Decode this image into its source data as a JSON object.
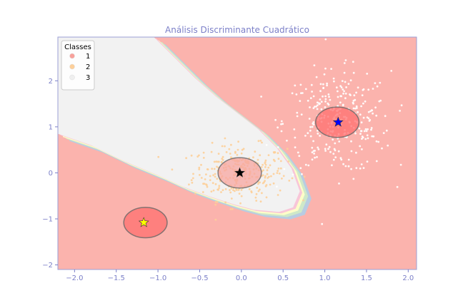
{
  "chart_data": {
    "type": "scatter",
    "title": "Análisis Discriminante Cuadrático",
    "xlabel": "",
    "ylabel": "",
    "xlim": [
      -2.2,
      2.1
    ],
    "ylim": [
      -2.1,
      2.95
    ],
    "xticks": [
      -2.0,
      -1.5,
      -1.0,
      -0.5,
      0.0,
      0.5,
      1.0,
      1.5,
      2.0
    ],
    "xtick_labels": [
      "−2.0",
      "−1.5",
      "−1.0",
      "−0.5",
      "0.0",
      "0.5",
      "1.0",
      "1.5",
      "2.0"
    ],
    "yticks": [
      -2,
      -1,
      0,
      1,
      2
    ],
    "ytick_labels": [
      "−2",
      "−1",
      "0",
      "1",
      "2"
    ],
    "grid": false,
    "legend": {
      "title": "Classes",
      "position": "top-left",
      "entries": [
        {
          "label": "1",
          "color": "#f8a19b"
        },
        {
          "label": "2",
          "color": "#fdcf99"
        },
        {
          "label": "3",
          "color": "#efefef"
        }
      ]
    },
    "series": [
      {
        "class": "1",
        "color": "#f8a19b",
        "cluster_center": [
          -1.15,
          -1.08
        ],
        "n_points": 0
      },
      {
        "class": "2",
        "color": "#fdcf99",
        "cluster_center": [
          -0.02,
          0.0
        ],
        "spread": [
          0.28,
          0.3
        ],
        "n_points": 300
      },
      {
        "class": "3",
        "color": "#ffffff",
        "cluster_center": [
          1.15,
          1.1
        ],
        "spread": [
          0.32,
          0.55
        ],
        "n_points": 320
      }
    ],
    "class_means": [
      {
        "class": "1",
        "x": -1.17,
        "y": -1.08,
        "marker": "star",
        "color": "#ffff00"
      },
      {
        "class": "2",
        "x": -0.02,
        "y": 0.0,
        "marker": "star",
        "color": "#000000"
      },
      {
        "class": "3",
        "x": 1.16,
        "y": 1.1,
        "marker": "star",
        "color": "#0000ff"
      }
    ],
    "covariance_ellipses": [
      {
        "class": "1",
        "cx": -1.15,
        "cy": -1.08,
        "rx": 0.26,
        "ry": 0.33,
        "fill": "#ff6f6f"
      },
      {
        "class": "2",
        "cx": -0.02,
        "cy": 0.0,
        "rx": 0.26,
        "ry": 0.33,
        "fill": "#f7a5a0"
      },
      {
        "class": "3",
        "cx": 1.15,
        "cy": 1.1,
        "rx": 0.26,
        "ry": 0.33,
        "fill": "#ff6f6f"
      }
    ],
    "decision_regions": {
      "background_class": "1",
      "colors": {
        "1": "#fbb3ad",
        "3": "#f2f2f2"
      },
      "boundary_colors": [
        "#f8c6d8",
        "#fdfdc8",
        "#cfe8c8",
        "#b8cce2"
      ]
    }
  }
}
